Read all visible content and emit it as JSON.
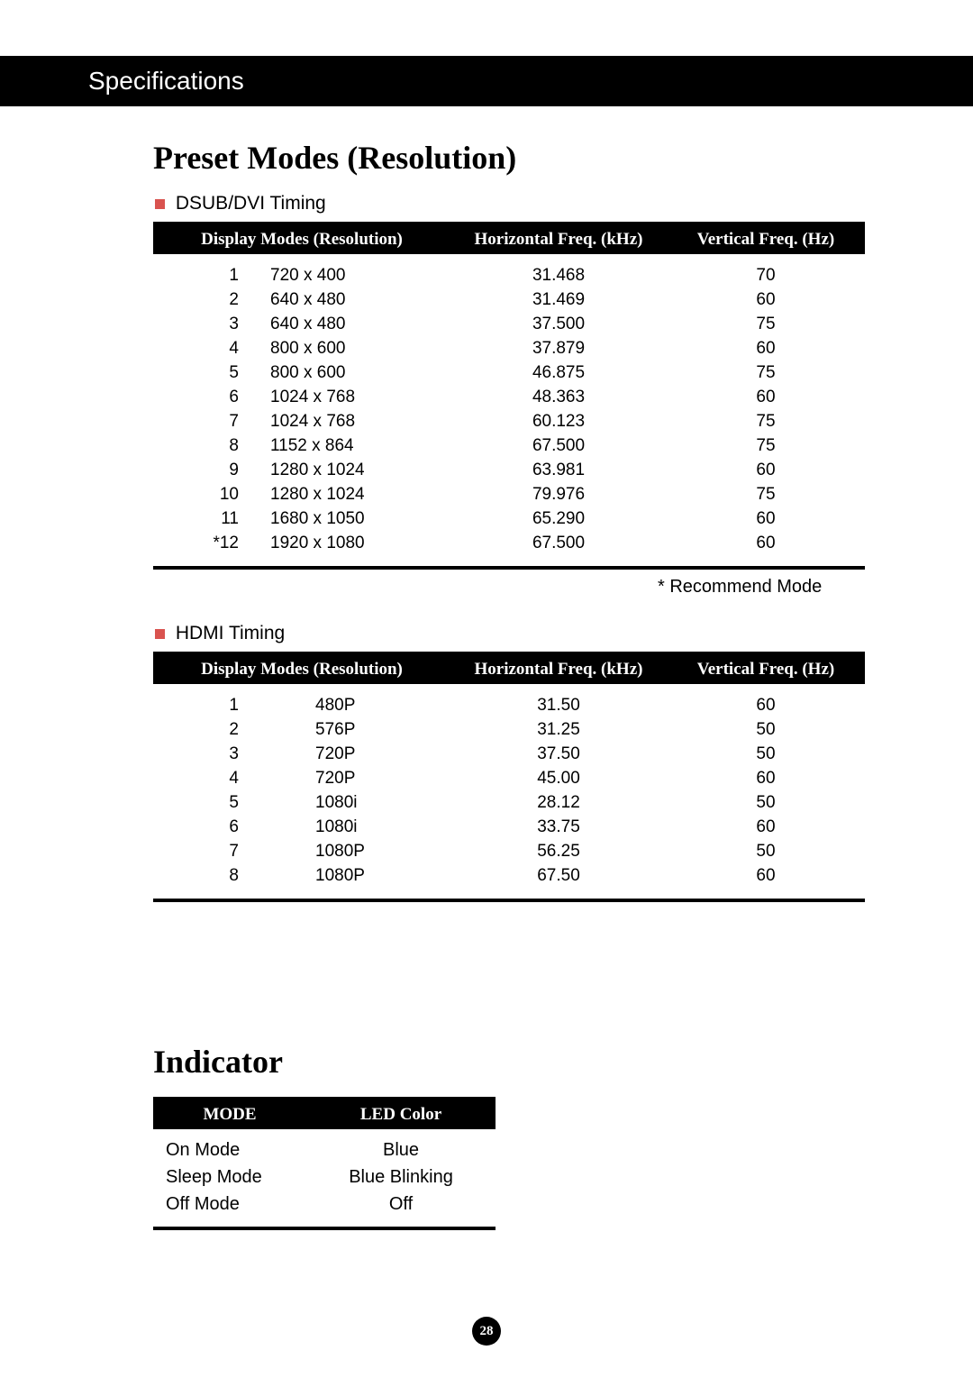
{
  "header_bar": "Specifications",
  "section1_title": "Preset Modes (Resolution)",
  "section2_title": "Indicator",
  "dsub_label": "DSUB/DVI Timing",
  "hdmi_label": "HDMI Timing",
  "recommend_note": "* Recommend Mode",
  "col_headers": {
    "display_modes": "Display Modes (Resolution)",
    "hfreq": "Horizontal Freq. (kHz)",
    "vfreq": "Vertical Freq. (Hz)"
  },
  "indicator_headers": {
    "mode": "MODE",
    "led": "LED Color"
  },
  "dsub_rows": [
    {
      "idx": "1",
      "res": "720 x 400",
      "hf": "31.468",
      "vf": "70"
    },
    {
      "idx": "2",
      "res": "640 x 480",
      "hf": "31.469",
      "vf": "60"
    },
    {
      "idx": "3",
      "res": "640 x 480",
      "hf": "37.500",
      "vf": "75"
    },
    {
      "idx": "4",
      "res": "800 x 600",
      "hf": "37.879",
      "vf": "60"
    },
    {
      "idx": "5",
      "res": "800 x 600",
      "hf": "46.875",
      "vf": "75"
    },
    {
      "idx": "6",
      "res": "1024 x 768",
      "hf": "48.363",
      "vf": "60"
    },
    {
      "idx": "7",
      "res": "1024 x 768",
      "hf": "60.123",
      "vf": "75"
    },
    {
      "idx": "8",
      "res": "1152 x 864",
      "hf": "67.500",
      "vf": "75"
    },
    {
      "idx": "9",
      "res": "1280 x 1024",
      "hf": "63.981",
      "vf": "60"
    },
    {
      "idx": "10",
      "res": "1280 x 1024",
      "hf": "79.976",
      "vf": "75"
    },
    {
      "idx": "11",
      "res": "1680 x 1050",
      "hf": "65.290",
      "vf": "60"
    },
    {
      "idx": "*12",
      "res": "1920 x 1080",
      "hf": "67.500",
      "vf": "60"
    }
  ],
  "hdmi_rows": [
    {
      "idx": "1",
      "res": "480P",
      "hf": "31.50",
      "vf": "60"
    },
    {
      "idx": "2",
      "res": "576P",
      "hf": "31.25",
      "vf": "50"
    },
    {
      "idx": "3",
      "res": "720P",
      "hf": "37.50",
      "vf": "50"
    },
    {
      "idx": "4",
      "res": "720P",
      "hf": "45.00",
      "vf": "60"
    },
    {
      "idx": "5",
      "res": "1080i",
      "hf": "28.12",
      "vf": "50"
    },
    {
      "idx": "6",
      "res": "1080i",
      "hf": "33.75",
      "vf": "60"
    },
    {
      "idx": "7",
      "res": "1080P",
      "hf": "56.25",
      "vf": "50"
    },
    {
      "idx": "8",
      "res": "1080P",
      "hf": "67.50",
      "vf": "60"
    }
  ],
  "indicator_rows": [
    {
      "mode": "On Mode",
      "led": "Blue"
    },
    {
      "mode": "Sleep Mode",
      "led": "Blue Blinking"
    },
    {
      "mode": "Off Mode",
      "led": "Off"
    }
  ],
  "page_number": "28",
  "colors": {
    "bullet": "#d9534f",
    "header_bg": "#000000",
    "header_fg": "#ffffff",
    "body_bg": "#ffffff",
    "text": "#000000"
  }
}
